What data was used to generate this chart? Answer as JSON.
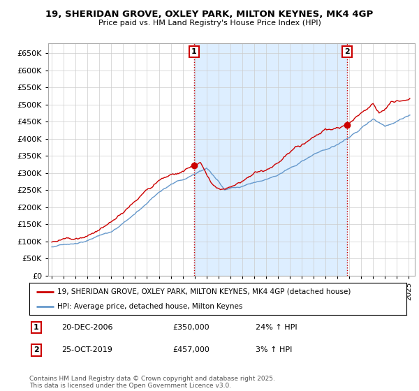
{
  "title": "19, SHERIDAN GROVE, OXLEY PARK, MILTON KEYNES, MK4 4GP",
  "subtitle": "Price paid vs. HM Land Registry's House Price Index (HPI)",
  "line1_label": "19, SHERIDAN GROVE, OXLEY PARK, MILTON KEYNES, MK4 4GP (detached house)",
  "line2_label": "HPI: Average price, detached house, Milton Keynes",
  "line1_color": "#cc0000",
  "line2_color": "#6699cc",
  "shade_color": "#ddeeff",
  "purchase1_date_label": "20-DEC-2006",
  "purchase1_price": 350000,
  "purchase1_pct": "24% ↑ HPI",
  "purchase1_x": 2006.96,
  "purchase2_date_label": "25-OCT-2019",
  "purchase2_price": 457000,
  "purchase2_pct": "3% ↑ HPI",
  "purchase2_x": 2019.81,
  "ylim": [
    0,
    680000
  ],
  "ytick_step": 50000,
  "xlim_start": 1994.7,
  "xlim_end": 2025.5,
  "footer_text": "Contains HM Land Registry data © Crown copyright and database right 2025.\nThis data is licensed under the Open Government Licence v3.0.",
  "bg_color": "#ffffff",
  "grid_color": "#cccccc"
}
